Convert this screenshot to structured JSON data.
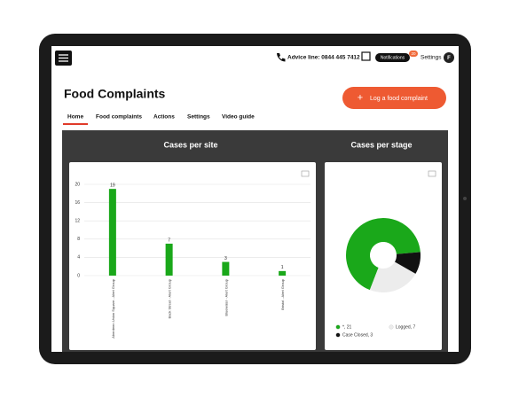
{
  "top_bar": {
    "advice_line": "Advice line: 0844 445 7412",
    "notifications": "Notifications",
    "notifications_badge": "20",
    "settings": "Settings",
    "avatar": "F"
  },
  "header": {
    "title": "Food Complaints",
    "button": "Log a food complaint"
  },
  "tabs": [
    "Home",
    "Food complaints",
    "Actions",
    "Settings",
    "Video guide"
  ],
  "chart_data": [
    {
      "type": "bar",
      "title": "Cases per site",
      "categories": [
        "Aberdeen Union Square - Alert Group",
        "Back Street - Alert Group",
        "Bluewater - Alert Group",
        "Bristol - Alert Group"
      ],
      "values": [
        19,
        7,
        3,
        1
      ],
      "color": "#1aa81a",
      "ylim": [
        0,
        20
      ],
      "yticks": [
        0,
        4,
        8,
        12,
        16,
        20
      ],
      "grid": true
    },
    {
      "type": "pie",
      "title": "Cases per stage",
      "categories": [
        "*",
        "Logged",
        "Case Closed"
      ],
      "values": [
        21,
        7,
        3
      ],
      "colors": [
        "#1aa81a",
        "#ececec",
        "#111111"
      ],
      "legend_labels": [
        "*, 21",
        "Logged, 7",
        "Case Closed, 3"
      ]
    }
  ]
}
